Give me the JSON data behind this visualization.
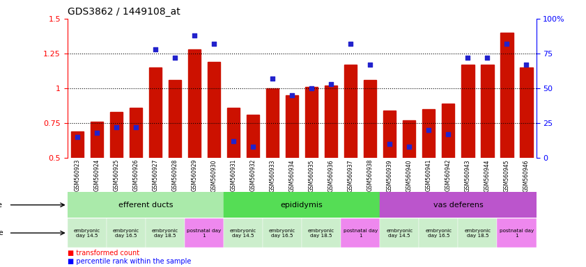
{
  "title": "GDS3862 / 1449108_at",
  "samples": [
    "GSM560923",
    "GSM560924",
    "GSM560925",
    "GSM560926",
    "GSM560927",
    "GSM560928",
    "GSM560929",
    "GSM560930",
    "GSM560931",
    "GSM560932",
    "GSM560933",
    "GSM560934",
    "GSM560935",
    "GSM560936",
    "GSM560937",
    "GSM560938",
    "GSM560939",
    "GSM560940",
    "GSM560941",
    "GSM560942",
    "GSM560943",
    "GSM560944",
    "GSM560945",
    "GSM560946"
  ],
  "red_values": [
    0.69,
    0.76,
    0.83,
    0.86,
    1.15,
    1.06,
    1.28,
    1.19,
    0.86,
    0.81,
    1.0,
    0.95,
    1.01,
    1.02,
    1.17,
    1.06,
    0.84,
    0.77,
    0.85,
    0.89,
    1.17,
    1.17,
    1.4,
    1.15
  ],
  "blue_values": [
    15,
    18,
    22,
    22,
    78,
    72,
    88,
    82,
    12,
    8,
    57,
    45,
    50,
    53,
    82,
    67,
    10,
    8,
    20,
    17,
    72,
    72,
    82,
    67
  ],
  "tissue_groups": [
    {
      "label": "efferent ducts",
      "start": 0,
      "end": 7,
      "color": "#aaeaaa"
    },
    {
      "label": "epididymis",
      "start": 8,
      "end": 15,
      "color": "#55dd55"
    },
    {
      "label": "vas deferens",
      "start": 16,
      "end": 23,
      "color": "#bb55cc"
    }
  ],
  "dev_groups": [
    {
      "label": "embryonic\nday 14.5",
      "start": 0,
      "end": 1,
      "color": "#cceecc"
    },
    {
      "label": "embryonic\nday 16.5",
      "start": 2,
      "end": 3,
      "color": "#cceecc"
    },
    {
      "label": "embryonic\nday 18.5",
      "start": 4,
      "end": 5,
      "color": "#cceecc"
    },
    {
      "label": "postnatal day\n1",
      "start": 6,
      "end": 7,
      "color": "#ee88ee"
    },
    {
      "label": "embryonic\nday 14.5",
      "start": 8,
      "end": 9,
      "color": "#cceecc"
    },
    {
      "label": "embryonic\nday 16.5",
      "start": 10,
      "end": 11,
      "color": "#cceecc"
    },
    {
      "label": "embryonic\nday 18.5",
      "start": 12,
      "end": 13,
      "color": "#cceecc"
    },
    {
      "label": "postnatal day\n1",
      "start": 14,
      "end": 15,
      "color": "#ee88ee"
    },
    {
      "label": "embryonic\nday 14.5",
      "start": 16,
      "end": 17,
      "color": "#cceecc"
    },
    {
      "label": "embryonic\nday 16.5",
      "start": 18,
      "end": 19,
      "color": "#cceecc"
    },
    {
      "label": "embryonic\nday 18.5",
      "start": 20,
      "end": 21,
      "color": "#cceecc"
    },
    {
      "label": "postnatal day\n1",
      "start": 22,
      "end": 23,
      "color": "#ee88ee"
    }
  ],
  "ylim_left": [
    0.5,
    1.5
  ],
  "ylim_right": [
    0,
    100
  ],
  "yticks_left": [
    0.5,
    0.75,
    1.0,
    1.25,
    1.5
  ],
  "ytick_labels_left": [
    "0.5",
    "0.75",
    "1",
    "1.25",
    "1.5"
  ],
  "yticks_right": [
    0,
    25,
    50,
    75,
    100
  ],
  "ytick_labels_right": [
    "0",
    "25",
    "50",
    "75",
    "100%"
  ],
  "bar_color": "#cc1100",
  "dot_color": "#2222cc",
  "xticklabel_bg": "#cccccc"
}
